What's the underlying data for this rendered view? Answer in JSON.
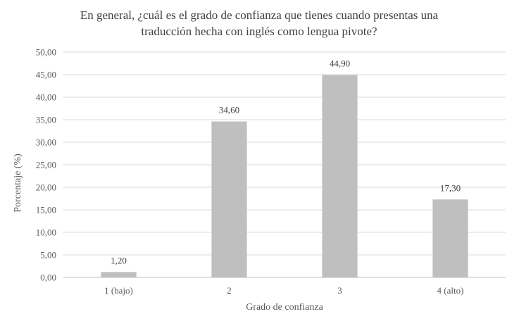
{
  "chart_data": {
    "type": "bar",
    "title_lines": [
      "En general, ¿cuál es el grado de confianza que tienes cuando presentas una",
      "traducción hecha con inglés como lengua pivote?"
    ],
    "categories": [
      "1 (bajo)",
      "2",
      "3",
      "4 (alto)"
    ],
    "values": [
      1.2,
      34.6,
      44.9,
      17.3
    ],
    "value_labels": [
      "1,20",
      "34,60",
      "44,90",
      "17,30"
    ],
    "xlabel": "Grado de confianza",
    "ylabel": "Porcentaje (%)",
    "ylim": [
      0,
      50
    ],
    "y_ticks": [
      0,
      5,
      10,
      15,
      20,
      25,
      30,
      35,
      40,
      45,
      50
    ],
    "y_tick_labels": [
      "0,00",
      "5,00",
      "10,00",
      "15,00",
      "20,00",
      "25,00",
      "30,00",
      "35,00",
      "40,00",
      "45,00",
      "50,00"
    ],
    "grid": true,
    "legend": "none",
    "bar_color": "#bfbfbf"
  }
}
